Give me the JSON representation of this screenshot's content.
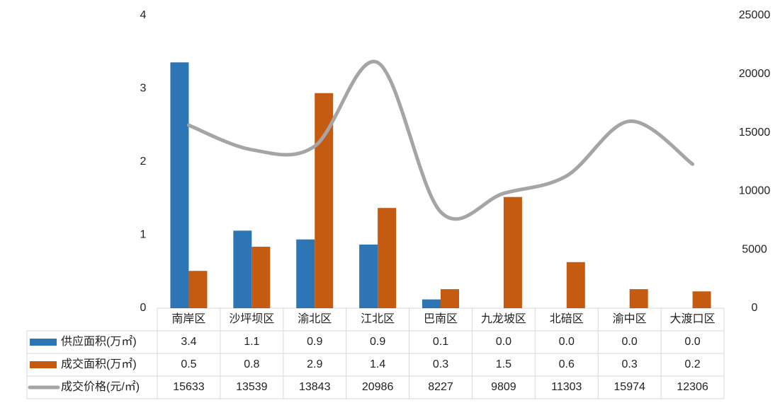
{
  "chart_data": {
    "type": "bar",
    "categories": [
      "南岸区",
      "沙坪坝区",
      "渝北区",
      "江北区",
      "巴南区",
      "九龙坡区",
      "北碚区",
      "渝中区",
      "大渡口区"
    ],
    "series": [
      {
        "name": "供应面积(万㎡)",
        "color": "#2e75b6",
        "type": "bar",
        "values": [
          3.36,
          1.06,
          0.94,
          0.87,
          0.12,
          0,
          0,
          0,
          0
        ],
        "value_labels": [
          "3.4",
          "1.1",
          "0.9",
          "0.9",
          "0.1",
          "0.0",
          "0.0",
          "0.0",
          "0.0"
        ]
      },
      {
        "name": "成交面积(万㎡)",
        "color": "#c55a11",
        "type": "bar",
        "values": [
          0.51,
          0.84,
          2.94,
          1.37,
          0.26,
          1.52,
          0.63,
          0.26,
          0.23
        ],
        "value_labels": [
          "0.5",
          "0.8",
          "2.9",
          "1.4",
          "0.3",
          "1.5",
          "0.6",
          "0.3",
          "0.2"
        ]
      },
      {
        "name": "成交价格(元/㎡)",
        "color": "#a5a5a5",
        "type": "line",
        "axis": "y2",
        "values": [
          15633,
          13539,
          13843,
          20986,
          8227,
          9809,
          11303,
          15974,
          12306
        ]
      }
    ],
    "ylim": [
      0,
      4
    ],
    "yticks": [
      0,
      1,
      2,
      3,
      4
    ],
    "y2lim": [
      0,
      25000
    ],
    "y2ticks": [
      0,
      5000,
      10000,
      15000,
      20000,
      25000
    ]
  }
}
